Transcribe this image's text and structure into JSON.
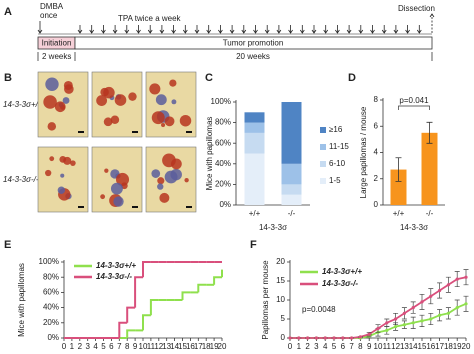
{
  "timeline": {
    "panel": "A",
    "dmba": [
      "DMBA",
      "once"
    ],
    "tpa": "TPA twice a week",
    "dissection": "Dissection",
    "initiation": "Initiation",
    "promotion": "Tumor promotion",
    "initiation_duration": "2 weeks",
    "promotion_duration": "20 weeks"
  },
  "photos": {
    "panel": "B",
    "rows": [
      "14-3-3σ+/+",
      "14-3-3σ-/-"
    ]
  },
  "chart_data": [
    {
      "panel": "C",
      "type": "stacked_bar",
      "ylabel": "Mice with papillomas",
      "xlabel": "14-3-3σ",
      "categories": [
        "+/+",
        "-/-"
      ],
      "series": [
        {
          "name": "1-5",
          "color": "#e4eef9",
          "values": [
            50,
            10
          ]
        },
        {
          "name": "6-10",
          "color": "#c6dbf1",
          "values": [
            20,
            10
          ]
        },
        {
          "name": "11-15",
          "color": "#9dc1e8",
          "values": [
            10,
            20
          ]
        },
        {
          "name": "≥16",
          "color": "#4f84c4",
          "values": [
            10,
            60
          ]
        }
      ],
      "ylim": [
        0,
        100
      ],
      "yticks": [
        {
          "value": 0,
          "label": "0%"
        },
        {
          "value": 20,
          "label": "20%"
        },
        {
          "value": 40,
          "label": "40%"
        },
        {
          "value": 60,
          "label": "60%"
        },
        {
          "value": 80,
          "label": "80%"
        },
        {
          "value": 100,
          "label": "100%"
        }
      ]
    },
    {
      "panel": "D",
      "type": "bar",
      "ylabel": "Large papillomas / mouse",
      "xlabel": "14-3-3σ",
      "categories": [
        "+/+",
        "-/-"
      ],
      "values": [
        2.7,
        5.5
      ],
      "errors": [
        0.9,
        0.8
      ],
      "color": "#f7941d",
      "annotation": "p=0.041",
      "ylim": [
        0,
        8
      ],
      "yticks": [
        0,
        2,
        4,
        6,
        8
      ]
    },
    {
      "panel": "E",
      "type": "step",
      "ylabel": "Mice with papillomas",
      "xlabel": "Weeks of tumor promotion",
      "x": [
        0,
        1,
        2,
        3,
        4,
        5,
        6,
        7,
        8,
        9,
        10,
        11,
        12,
        13,
        14,
        15,
        16,
        17,
        18,
        19,
        20
      ],
      "series": [
        {
          "name": "14-3-3σ+/+",
          "color": "#8fe04d",
          "values": [
            0,
            0,
            0,
            0,
            0,
            0,
            0,
            0,
            10,
            10,
            30,
            50,
            50,
            50,
            50,
            60,
            60,
            70,
            70,
            80,
            90
          ]
        },
        {
          "name": "14-3-3σ-/-",
          "color": "#d94f7c",
          "values": [
            0,
            0,
            0,
            0,
            0,
            0,
            0,
            20,
            40,
            80,
            100,
            100,
            100,
            100,
            100,
            100,
            100,
            100,
            100,
            100,
            100
          ]
        }
      ],
      "xlim": [
        0,
        20
      ],
      "xticks": [
        0,
        1,
        2,
        3,
        4,
        5,
        6,
        7,
        8,
        9,
        10,
        11,
        12,
        13,
        14,
        15,
        16,
        17,
        18,
        19,
        20
      ],
      "ylim": [
        0,
        100
      ],
      "yticks": [
        {
          "value": 0,
          "label": "0%"
        },
        {
          "value": 20,
          "label": "20%"
        },
        {
          "value": 40,
          "label": "40%"
        },
        {
          "value": 60,
          "label": "60%"
        },
        {
          "value": 80,
          "label": "80%"
        },
        {
          "value": 100,
          "label": "100%"
        }
      ]
    },
    {
      "panel": "F",
      "type": "line",
      "ylabel": "Papillomas per mouse",
      "xlabel": "Weeks of tumor promotion",
      "annotation": "p=0.0048",
      "x": [
        0,
        1,
        2,
        3,
        4,
        5,
        6,
        7,
        8,
        9,
        10,
        11,
        12,
        13,
        14,
        15,
        16,
        17,
        18,
        19,
        20
      ],
      "series": [
        {
          "name": "14-3-3σ+/+",
          "color": "#8fe04d",
          "values": [
            0,
            0,
            0,
            0,
            0,
            0,
            0,
            0,
            0,
            0.5,
            1.5,
            2,
            3,
            3.5,
            4,
            4.5,
            5,
            6,
            6.5,
            8,
            9
          ],
          "errors": [
            0,
            0,
            0,
            0,
            0,
            0,
            0,
            0,
            0,
            0.5,
            1,
            1,
            1,
            1,
            1.5,
            1.5,
            1.5,
            1.5,
            1.5,
            2,
            2
          ]
        },
        {
          "name": "14-3-3σ-/-",
          "color": "#d94f7c",
          "values": [
            0,
            0,
            0,
            0,
            0,
            0,
            0,
            0,
            0.3,
            1,
            2.5,
            4,
            5,
            6.5,
            8,
            9.5,
            11,
            12.5,
            14,
            15.5,
            16
          ],
          "errors": [
            0,
            0,
            0,
            0,
            0,
            0,
            0,
            0,
            0,
            0.5,
            1,
            1,
            1.5,
            1.5,
            1.5,
            2,
            2,
            2,
            2,
            2,
            2
          ]
        }
      ],
      "xlim": [
        0,
        20
      ],
      "xticks": [
        0,
        1,
        2,
        3,
        4,
        5,
        6,
        7,
        8,
        9,
        10,
        11,
        12,
        13,
        14,
        15,
        16,
        17,
        18,
        19,
        20
      ],
      "ylim": [
        0,
        20
      ],
      "yticks": [
        0,
        5,
        10,
        15,
        20
      ]
    }
  ]
}
